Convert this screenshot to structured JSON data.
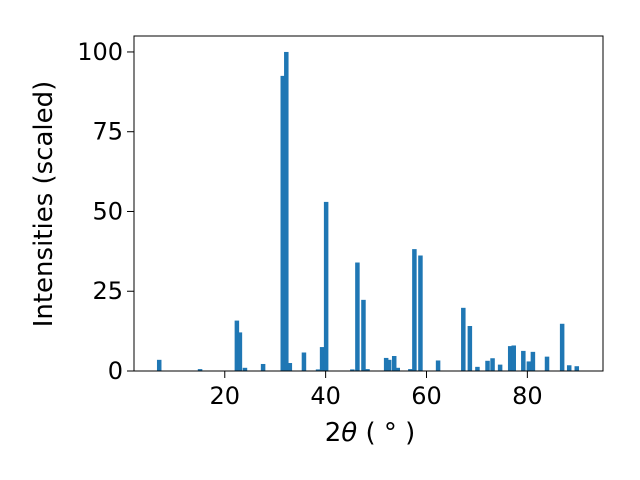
{
  "chart_data": {
    "type": "bar",
    "xlabel_main": "2",
    "xlabel_theta": "θ",
    "xlabel_unit": " ( ° )",
    "ylabel": "Intensities (scaled)",
    "xlim": [
      2,
      95
    ],
    "ylim": [
      0,
      105
    ],
    "xticks": [
      20,
      40,
      60,
      80
    ],
    "yticks": [
      0,
      25,
      50,
      75,
      100
    ],
    "bar_color": "#1f77b4",
    "grid": false,
    "legend": "none",
    "x": [
      7.0,
      15.1,
      22.4,
      23.0,
      24.0,
      27.6,
      31.5,
      32.2,
      32.9,
      35.7,
      38.5,
      39.3,
      40.1,
      45.3,
      46.3,
      47.5,
      48.3,
      52.0,
      52.6,
      53.6,
      54.3,
      56.8,
      57.6,
      58.8,
      62.3,
      67.3,
      68.6,
      70.1,
      72.1,
      73.1,
      74.6,
      76.6,
      77.3,
      79.2,
      80.3,
      81.1,
      83.9,
      86.9,
      88.3,
      89.8
    ],
    "values": [
      3.5,
      0.6,
      15.8,
      12.1,
      1.0,
      2.2,
      92.5,
      100.0,
      2.5,
      5.8,
      0.5,
      7.5,
      53.0,
      0.5,
      34.0,
      22.3,
      0.6,
      4.1,
      3.5,
      4.7,
      1.0,
      0.6,
      38.2,
      36.2,
      3.3,
      19.8,
      14.1,
      1.3,
      3.2,
      4.0,
      2.0,
      7.8,
      8.0,
      6.3,
      3.0,
      6.0,
      4.5,
      14.8,
      1.8,
      1.5
    ]
  }
}
